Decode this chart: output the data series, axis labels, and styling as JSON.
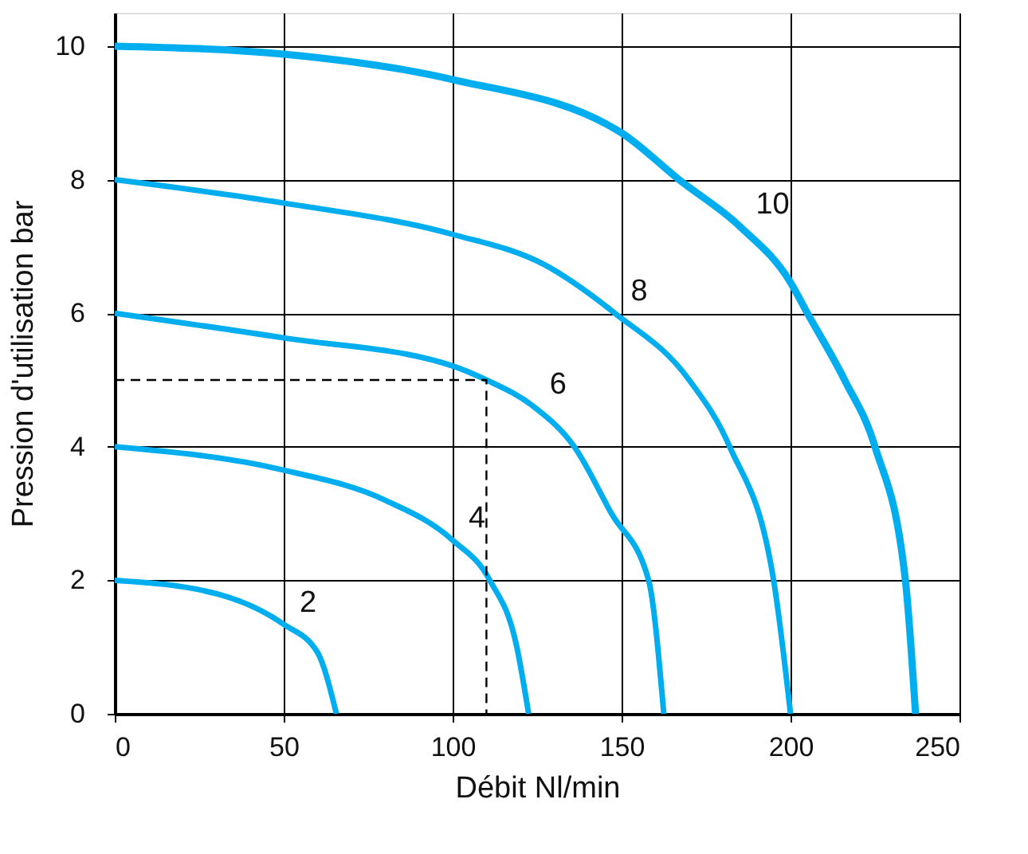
{
  "chart_data": {
    "type": "line",
    "xlabel": "Débit Nl/min",
    "ylabel": "Pression d'utilisation bar",
    "xlim": [
      0,
      250
    ],
    "ylim": [
      0,
      10.5
    ],
    "xticks": [
      0,
      50,
      100,
      150,
      200,
      250
    ],
    "yticks": [
      0,
      2,
      4,
      6,
      8,
      10
    ],
    "grid": true,
    "legend": false,
    "line_style": "solid",
    "series": [
      {
        "name": "10",
        "color": "#00aeef",
        "x": [
          0,
          50,
          100,
          150,
          167,
          185,
          200,
          205,
          216,
          225,
          234,
          237
        ],
        "values": [
          10,
          9.88,
          9.5,
          8.7,
          8,
          7.3,
          6.46,
          6,
          5,
          4,
          2,
          0
        ]
      },
      {
        "name": "8",
        "color": "#00aeef",
        "x": [
          0,
          50,
          100,
          127,
          148,
          170,
          182,
          195,
          200
        ],
        "values": [
          8,
          7.65,
          7.18,
          6.73,
          6,
          5,
          4,
          2,
          0
        ]
      },
      {
        "name": "6",
        "color": "#00aeef",
        "x": [
          0,
          50,
          100,
          110,
          124,
          136,
          147,
          158,
          162.5
        ],
        "values": [
          6,
          5.63,
          5.21,
          5,
          4.6,
          4,
          3,
          2,
          0
        ]
      },
      {
        "name": "4",
        "color": "#00aeef",
        "x": [
          0,
          50,
          80,
          100,
          111,
          119,
          122.5
        ],
        "values": [
          4,
          3.65,
          3.2,
          2.6,
          2,
          1,
          0
        ]
      },
      {
        "name": "2",
        "color": "#00aeef",
        "x": [
          0,
          30,
          50,
          60,
          65.6
        ],
        "values": [
          2,
          1.8,
          1.34,
          0.92,
          0
        ]
      },
      {
        "color": "#000000",
        "line_style": "dashed",
        "x": [
          0,
          110,
          110
        ],
        "values": [
          5,
          5,
          0
        ]
      }
    ]
  }
}
